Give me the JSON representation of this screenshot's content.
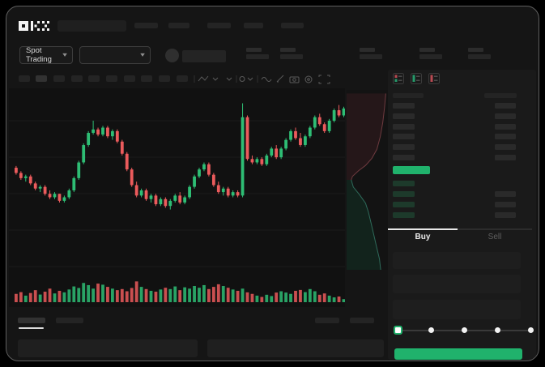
{
  "nav": {
    "brand_label": "OKX",
    "item_count": 5
  },
  "market_bar": {
    "pair_selector_label": "Spot Trading",
    "stat_group_count": 5
  },
  "trade_panel": {
    "tabs": {
      "buy": "Buy",
      "sell": "Sell"
    },
    "active_tab": "Buy",
    "slider_stops": 5,
    "slider_active_stop_index": 0,
    "orderbook": {
      "ask_row_count": 6,
      "bid_row_count": 4,
      "last_price_highlight": "green"
    }
  },
  "colors": {
    "up": "#2ebd74",
    "down": "#eb5b5c",
    "accent_green": "#20b26c",
    "grid": "#1c1c1c",
    "depth_ask_fill": "#251719",
    "depth_ask_line": "#6e3a3f",
    "depth_bid_fill": "#12231c",
    "depth_bid_line": "#2e6a5a"
  },
  "chart_data": {
    "type": "candlestick+volume+depth",
    "title": "",
    "axis_labels_visible": false,
    "price_scale": "relative units 0-100 (no numeric axis shown)",
    "candles_ohlc": [
      [
        60,
        61,
        56,
        57
      ],
      [
        57,
        58,
        53,
        54
      ],
      [
        54,
        56,
        52,
        55
      ],
      [
        55,
        56,
        50,
        51
      ],
      [
        51,
        52,
        47,
        48
      ],
      [
        48,
        50,
        46,
        49
      ],
      [
        49,
        50,
        44,
        45
      ],
      [
        45,
        47,
        42,
        43
      ],
      [
        43,
        46,
        42,
        45
      ],
      [
        45,
        45,
        40,
        41
      ],
      [
        41,
        44,
        40,
        43
      ],
      [
        43,
        48,
        42,
        47
      ],
      [
        47,
        55,
        46,
        54
      ],
      [
        54,
        64,
        53,
        63
      ],
      [
        63,
        74,
        62,
        73
      ],
      [
        73,
        81,
        72,
        80
      ],
      [
        80,
        87,
        79,
        82
      ],
      [
        82,
        83,
        78,
        79
      ],
      [
        79,
        84,
        78,
        83
      ],
      [
        83,
        84,
        77,
        78
      ],
      [
        78,
        82,
        76,
        81
      ],
      [
        81,
        82,
        74,
        75
      ],
      [
        75,
        76,
        67,
        68
      ],
      [
        68,
        69,
        58,
        59
      ],
      [
        59,
        60,
        49,
        50
      ],
      [
        50,
        52,
        43,
        44
      ],
      [
        44,
        48,
        43,
        47
      ],
      [
        47,
        48,
        41,
        42
      ],
      [
        42,
        45,
        40,
        44
      ],
      [
        44,
        45,
        38,
        39
      ],
      [
        39,
        43,
        38,
        42
      ],
      [
        42,
        43,
        37,
        38
      ],
      [
        38,
        42,
        36,
        41
      ],
      [
        41,
        45,
        40,
        44
      ],
      [
        44,
        46,
        39,
        40
      ],
      [
        40,
        44,
        39,
        43
      ],
      [
        43,
        50,
        42,
        49
      ],
      [
        49,
        56,
        48,
        55
      ],
      [
        55,
        60,
        54,
        59
      ],
      [
        59,
        63,
        58,
        62
      ],
      [
        62,
        63,
        55,
        56
      ],
      [
        56,
        57,
        49,
        50
      ],
      [
        50,
        52,
        45,
        46
      ],
      [
        46,
        49,
        44,
        48
      ],
      [
        48,
        49,
        43,
        44
      ],
      [
        44,
        47,
        43,
        46
      ],
      [
        46,
        47,
        43,
        44
      ],
      [
        44,
        97,
        43,
        89
      ],
      [
        89,
        90,
        64,
        65
      ],
      [
        65,
        67,
        62,
        63
      ],
      [
        63,
        66,
        62,
        65
      ],
      [
        65,
        66,
        61,
        62
      ],
      [
        62,
        68,
        61,
        67
      ],
      [
        67,
        72,
        66,
        71
      ],
      [
        71,
        73,
        65,
        66
      ],
      [
        66,
        72,
        65,
        71
      ],
      [
        71,
        77,
        70,
        76
      ],
      [
        76,
        82,
        75,
        81
      ],
      [
        81,
        83,
        76,
        77
      ],
      [
        77,
        80,
        72,
        73
      ],
      [
        73,
        79,
        72,
        78
      ],
      [
        78,
        84,
        77,
        83
      ],
      [
        83,
        90,
        82,
        89
      ],
      [
        89,
        91,
        84,
        85
      ],
      [
        85,
        86,
        80,
        81
      ],
      [
        81,
        88,
        80,
        87
      ],
      [
        87,
        94,
        86,
        93
      ],
      [
        93,
        96,
        89,
        90
      ],
      [
        90,
        95,
        89,
        94
      ]
    ],
    "volumes": [
      38,
      46,
      30,
      42,
      55,
      35,
      48,
      62,
      40,
      52,
      45,
      58,
      72,
      65,
      88,
      78,
      62,
      85,
      80,
      70,
      62,
      55,
      60,
      50,
      65,
      95,
      70,
      60,
      52,
      48,
      58,
      66,
      60,
      72,
      55,
      68,
      62,
      74,
      66,
      78,
      60,
      70,
      82,
      74,
      66,
      58,
      52,
      62,
      45,
      38,
      30,
      24,
      34,
      28,
      44,
      50,
      44,
      38,
      52,
      56,
      46,
      60,
      50,
      34,
      40,
      30,
      22,
      26,
      14
    ],
    "depth": {
      "asks": [
        [
          0.93,
          0.02
        ],
        [
          0.9,
          0.1
        ],
        [
          0.86,
          0.18
        ],
        [
          0.8,
          0.26
        ],
        [
          0.72,
          0.33
        ],
        [
          0.6,
          0.38
        ],
        [
          0.45,
          0.42
        ],
        [
          0.28,
          0.45
        ],
        [
          0.14,
          0.48
        ],
        [
          0.11,
          0.5
        ]
      ],
      "bids": [
        [
          0.11,
          0.5
        ],
        [
          0.16,
          0.54
        ],
        [
          0.3,
          0.58
        ],
        [
          0.45,
          0.63
        ],
        [
          0.52,
          0.68
        ],
        [
          0.58,
          0.74
        ],
        [
          0.65,
          0.81
        ],
        [
          0.72,
          0.88
        ],
        [
          0.78,
          0.94
        ],
        [
          0.81,
          1.0
        ]
      ]
    }
  }
}
